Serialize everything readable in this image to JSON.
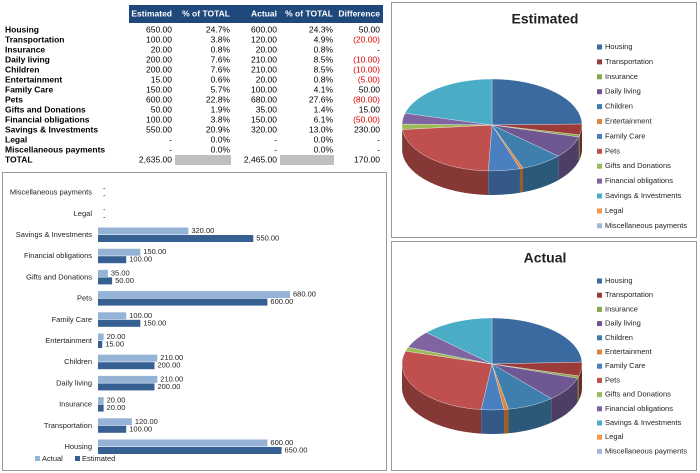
{
  "table": {
    "header": [
      "Estimated",
      "% of TOTAL",
      "Actual",
      "% of TOTAL",
      "Difference"
    ],
    "rows": [
      [
        "Housing",
        "650.00",
        "24.7%",
        "600.00",
        "24.3%",
        "50.00"
      ],
      [
        "Transportation",
        "100.00",
        "3.8%",
        "120.00",
        "4.9%",
        "(20.00)"
      ],
      [
        "Insurance",
        "20.00",
        "0.8%",
        "20.00",
        "0.8%",
        "-"
      ],
      [
        "Daily living",
        "200.00",
        "7.6%",
        "210.00",
        "8.5%",
        "(10.00)"
      ],
      [
        "Children",
        "200.00",
        "7.6%",
        "210.00",
        "8.5%",
        "(10.00)"
      ],
      [
        "Entertainment",
        "15.00",
        "0.6%",
        "20.00",
        "0.8%",
        "(5.00)"
      ],
      [
        "Family Care",
        "150.00",
        "5.7%",
        "100.00",
        "4.1%",
        "50.00"
      ],
      [
        "Pets",
        "600.00",
        "22.8%",
        "680.00",
        "27.6%",
        "(80.00)"
      ],
      [
        "Gifts and Donations",
        "50.00",
        "1.9%",
        "35.00",
        "1.4%",
        "15.00"
      ],
      [
        "Financial obligations",
        "100.00",
        "3.8%",
        "150.00",
        "6.1%",
        "(50.00)"
      ],
      [
        "Savings & Investments",
        "550.00",
        "20.9%",
        "320.00",
        "13.0%",
        "230.00"
      ],
      [
        "Legal",
        "-",
        "0.0%",
        "-",
        "0.0%",
        "-"
      ],
      [
        "Miscellaneous payments",
        "-",
        "0.0%",
        "-",
        "0.0%",
        "-"
      ]
    ],
    "total": [
      "TOTAL",
      "2,635.00",
      "2,465.00",
      "170.00"
    ]
  },
  "chart_data": [
    {
      "type": "bar",
      "orientation": "horizontal",
      "categories": [
        "Housing",
        "Transportation",
        "Insurance",
        "Daily living",
        "Children",
        "Entertainment",
        "Family Care",
        "Pets",
        "Gifts and Donations",
        "Financial obligations",
        "Savings & Investments",
        "Legal",
        "Miscellaneous payments"
      ],
      "series": [
        {
          "name": "Actual",
          "color": "#95b3d7",
          "values": [
            600,
            120,
            20,
            210,
            210,
            20,
            100,
            680,
            35,
            150,
            320,
            null,
            null
          ],
          "value_labels": [
            "600.00",
            "120.00",
            "20.00",
            "210.00",
            "210.00",
            "20.00",
            "100.00",
            "680.00",
            "35.00",
            "150.00",
            "320.00",
            "-",
            "-"
          ]
        },
        {
          "name": "Estimated",
          "color": "#376092",
          "values": [
            650,
            100,
            20,
            200,
            200,
            15,
            150,
            600,
            50,
            100,
            550,
            null,
            null
          ],
          "value_labels": [
            "650.00",
            "100.00",
            "20.00",
            "200.00",
            "200.00",
            "15.00",
            "150.00",
            "600.00",
            "50.00",
            "100.00",
            "550.00",
            "-",
            "-"
          ]
        }
      ]
    },
    {
      "type": "pie",
      "title": "Estimated",
      "categories": [
        "Housing",
        "Transportation",
        "Insurance",
        "Daily living",
        "Children",
        "Entertainment",
        "Family Care",
        "Pets",
        "Gifts and Donations",
        "Financial obligations",
        "Savings & Investments",
        "Legal",
        "Miscellaneous payments"
      ],
      "values": [
        650,
        100,
        20,
        200,
        200,
        15,
        150,
        600,
        50,
        100,
        550,
        0,
        0
      ],
      "colors": [
        "#3a6aa0",
        "#9c3c3a",
        "#8aa64a",
        "#6f5891",
        "#3e7fae",
        "#e0853c",
        "#4a7fc0",
        "#c0504d",
        "#9bbb59",
        "#8064a2",
        "#4bacc6",
        "#f79646",
        "#a5b6d9"
      ]
    },
    {
      "type": "pie",
      "title": "Actual",
      "categories": [
        "Housing",
        "Transportation",
        "Insurance",
        "Daily living",
        "Children",
        "Entertainment",
        "Family Care",
        "Pets",
        "Gifts and Donations",
        "Financial obligations",
        "Savings & Investments",
        "Legal",
        "Miscellaneous payments"
      ],
      "values": [
        600,
        120,
        20,
        210,
        210,
        20,
        100,
        680,
        35,
        150,
        320,
        0,
        0
      ],
      "colors": [
        "#3a6aa0",
        "#9c3c3a",
        "#8aa64a",
        "#6f5891",
        "#3e7fae",
        "#e0853c",
        "#4a7fc0",
        "#c0504d",
        "#9bbb59",
        "#8064a2",
        "#4bacc6",
        "#f79646",
        "#a5b6d9"
      ]
    }
  ]
}
